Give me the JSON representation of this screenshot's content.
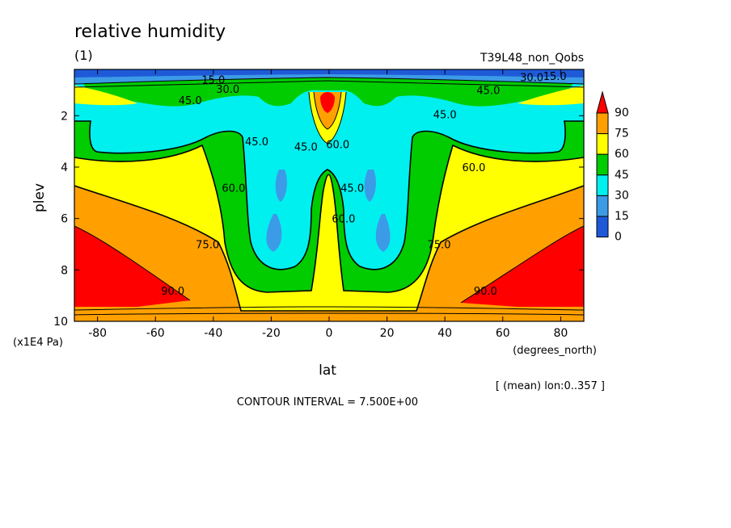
{
  "title": "relative humidity",
  "subtitle": "(1)",
  "run_label": "T39L48_non_Qobs",
  "footer_mean": "[ (mean) lon:0..357 ]",
  "contour_note": "CONTOUR INTERVAL = 7.500E+00",
  "chart_data": {
    "type": "contour",
    "xlabel": "lat",
    "xunit": "(degrees_north)",
    "ylabel": "plev",
    "yunit": "(x1E4 Pa)",
    "xlim": [
      -88,
      88
    ],
    "ylim": [
      10,
      0.2
    ],
    "x_ticks": [
      -80,
      -60,
      -40,
      -20,
      0,
      20,
      40,
      60,
      80
    ],
    "y_ticks": [
      2,
      4,
      6,
      8,
      10
    ],
    "levels": [
      0,
      15,
      30,
      45,
      60,
      75,
      90
    ],
    "legend_labels": [
      "90",
      "75",
      "60",
      "45",
      "30",
      "15",
      "0"
    ],
    "band_colors": [
      "#1e5ad8",
      "#3c9be6",
      "#00f0f0",
      "#00cc00",
      "#ffff00",
      "#ffa000",
      "#ff0000"
    ],
    "contour_labels": [
      {
        "text": "15.0",
        "lat": -40,
        "plev": 0.6
      },
      {
        "text": "30.0",
        "lat": -35,
        "plev": 0.95
      },
      {
        "text": "45.0",
        "lat": -48,
        "plev": 1.4
      },
      {
        "text": "45.0",
        "lat": -25,
        "plev": 3.0
      },
      {
        "text": "45.0",
        "lat": -8,
        "plev": 3.2
      },
      {
        "text": "60.0",
        "lat": 3,
        "plev": 3.1
      },
      {
        "text": "45.0",
        "lat": 8,
        "plev": 4.8
      },
      {
        "text": "60.0",
        "lat": 5,
        "plev": 6.0
      },
      {
        "text": "60.0",
        "lat": -33,
        "plev": 4.8
      },
      {
        "text": "45.0",
        "lat": 40,
        "plev": 1.95
      },
      {
        "text": "60.0",
        "lat": 50,
        "plev": 4.0
      },
      {
        "text": "45.0",
        "lat": 55,
        "plev": 1.0
      },
      {
        "text": "30.0",
        "lat": 70,
        "plev": 0.5
      },
      {
        "text": "15.0",
        "lat": 78,
        "plev": 0.45
      },
      {
        "text": "75.0",
        "lat": -42,
        "plev": 7.0
      },
      {
        "text": "75.0",
        "lat": 38,
        "plev": 7.0
      },
      {
        "text": "90.0",
        "lat": -54,
        "plev": 8.8
      },
      {
        "text": "90.0",
        "lat": 54,
        "plev": 8.8
      }
    ]
  }
}
